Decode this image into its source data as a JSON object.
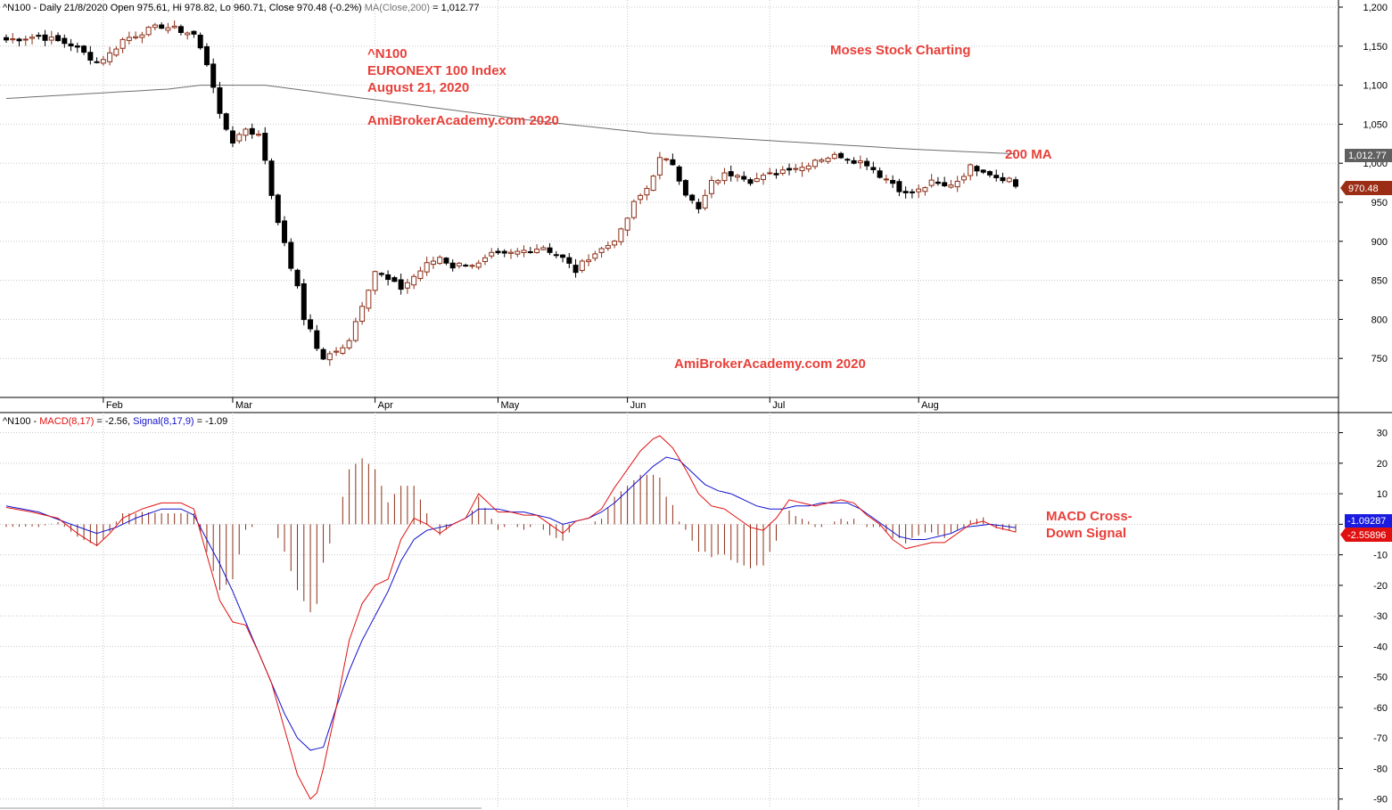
{
  "chart_data": [
    {
      "type": "candlestick",
      "header": {
        "symbol": "^N100",
        "info": " - Daily 21/8/2020 Open 975.61, Hi 978.82, Lo 960.71, Close 970.48 (-0.2%) ",
        "ma_label": "MA(Close,200)",
        "ma_value": " = 1,012.77"
      },
      "ylim": [
        700,
        1200
      ],
      "y_ticks": [
        {
          "value": 750,
          "label": "750"
        },
        {
          "value": 800,
          "label": "800"
        },
        {
          "value": 850,
          "label": "850"
        },
        {
          "value": 900,
          "label": "900"
        },
        {
          "value": 950,
          "label": "950"
        },
        {
          "value": 1000,
          "label": "1,000"
        },
        {
          "value": 1050,
          "label": "1,050"
        },
        {
          "value": 1100,
          "label": "1,100"
        },
        {
          "value": 1150,
          "label": "1,150"
        },
        {
          "value": 1200,
          "label": "1,200"
        }
      ],
      "x_ticks": [
        {
          "index": 15,
          "label": "Feb"
        },
        {
          "index": 35,
          "label": "Mar"
        },
        {
          "index": 57,
          "label": "Apr"
        },
        {
          "index": 76,
          "label": "May"
        },
        {
          "index": 96,
          "label": "Jun"
        },
        {
          "index": 118,
          "label": "Jul"
        },
        {
          "index": 141,
          "label": "Aug"
        }
      ],
      "close_keypoints": [
        [
          0,
          1158
        ],
        [
          5,
          1163
        ],
        [
          10,
          1152
        ],
        [
          14,
          1130
        ],
        [
          16,
          1140
        ],
        [
          18,
          1158
        ],
        [
          21,
          1168
        ],
        [
          24,
          1176
        ],
        [
          27,
          1170
        ],
        [
          29,
          1165
        ],
        [
          31,
          1128
        ],
        [
          32,
          1100
        ],
        [
          33,
          1060
        ],
        [
          35,
          1028
        ],
        [
          37,
          1045
        ],
        [
          39,
          1035
        ],
        [
          40,
          1005
        ],
        [
          41,
          960
        ],
        [
          43,
          895
        ],
        [
          45,
          840
        ],
        [
          46,
          800
        ],
        [
          47,
          790
        ],
        [
          48,
          762
        ],
        [
          49,
          750
        ],
        [
          51,
          758
        ],
        [
          53,
          775
        ],
        [
          55,
          820
        ],
        [
          57,
          862
        ],
        [
          59,
          850
        ],
        [
          61,
          840
        ],
        [
          63,
          855
        ],
        [
          65,
          870
        ],
        [
          67,
          880
        ],
        [
          69,
          868
        ],
        [
          71,
          872
        ],
        [
          73,
          870
        ],
        [
          75,
          882
        ],
        [
          77,
          882
        ],
        [
          80,
          888
        ],
        [
          83,
          893
        ],
        [
          86,
          878
        ],
        [
          88,
          862
        ],
        [
          90,
          880
        ],
        [
          93,
          895
        ],
        [
          95,
          912
        ],
        [
          97,
          948
        ],
        [
          99,
          968
        ],
        [
          101,
          1005
        ],
        [
          103,
          1000
        ],
        [
          105,
          962
        ],
        [
          107,
          940
        ],
        [
          109,
          975
        ],
        [
          111,
          985
        ],
        [
          113,
          988
        ],
        [
          115,
          978
        ],
        [
          117,
          982
        ],
        [
          119,
          988
        ],
        [
          121,
          995
        ],
        [
          123,
          995
        ],
        [
          125,
          1005
        ],
        [
          127,
          1008
        ],
        [
          129,
          1010
        ],
        [
          131,
          1004
        ],
        [
          133,
          1000
        ],
        [
          135,
          985
        ],
        [
          137,
          975
        ],
        [
          139,
          960
        ],
        [
          141,
          965
        ],
        [
          143,
          975
        ],
        [
          145,
          970
        ],
        [
          147,
          978
        ],
        [
          149,
          995
        ],
        [
          151,
          992
        ],
        [
          153,
          983
        ],
        [
          155,
          980
        ],
        [
          156,
          970
        ]
      ],
      "ma200_keypoints": [
        [
          0,
          1083
        ],
        [
          25,
          1095
        ],
        [
          30,
          1100
        ],
        [
          40,
          1100
        ],
        [
          60,
          1078
        ],
        [
          80,
          1056
        ],
        [
          100,
          1038
        ],
        [
          120,
          1028
        ],
        [
          140,
          1018
        ],
        [
          156,
          1012
        ]
      ],
      "last_close": 970.48,
      "last_close_label": "970.48",
      "last_ma": 1012.77,
      "last_ma_label": "1,012.77",
      "annotations": {
        "symbol_line": "^N100",
        "index_line": "EURONEXT 100 Index",
        "date_line": "August 21, 2020",
        "watermark1": "AmiBrokerAcademy.com  2020",
        "brand": "Moses Stock Charting",
        "ma_note": "200 MA",
        "watermark2": "AmiBrokerAcademy.com  2020"
      },
      "colors": {
        "up": "#8b2e16",
        "down": "#000000",
        "ma": "#6e6e6e",
        "close_tag": "#9b2d14",
        "ma_tag": "#606060"
      }
    },
    {
      "type": "line",
      "header": {
        "symbol": "^N100",
        "macd_label": "MACD(8,17)",
        "macd_value": " = -2.56, ",
        "signal_label": "Signal(8,17,9)",
        "signal_value": " = -1.09"
      },
      "ylim": [
        -93,
        36
      ],
      "y_ticks": [
        {
          "value": 30,
          "label": "30"
        },
        {
          "value": 20,
          "label": "20"
        },
        {
          "value": 10,
          "label": "10"
        },
        {
          "value": 0,
          "label": "0"
        },
        {
          "value": -10,
          "label": "-10"
        },
        {
          "value": -20,
          "label": "-20"
        },
        {
          "value": -30,
          "label": "-30"
        },
        {
          "value": -40,
          "label": "-40"
        },
        {
          "value": -50,
          "label": "-50"
        },
        {
          "value": -60,
          "label": "-60"
        },
        {
          "value": -70,
          "label": "-70"
        },
        {
          "value": -80,
          "label": "-80"
        },
        {
          "value": -90,
          "label": "-90"
        }
      ],
      "macd_keypoints": [
        [
          0,
          5.5
        ],
        [
          4,
          4
        ],
        [
          8,
          2
        ],
        [
          11,
          -3
        ],
        [
          14,
          -7
        ],
        [
          16,
          -3
        ],
        [
          18,
          2
        ],
        [
          21,
          5
        ],
        [
          24,
          7
        ],
        [
          27,
          7
        ],
        [
          29,
          5
        ],
        [
          31,
          -10
        ],
        [
          33,
          -25
        ],
        [
          35,
          -32
        ],
        [
          37,
          -33
        ],
        [
          39,
          -42
        ],
        [
          41,
          -52
        ],
        [
          43,
          -67
        ],
        [
          45,
          -82
        ],
        [
          47,
          -90
        ],
        [
          48,
          -88
        ],
        [
          49,
          -80
        ],
        [
          51,
          -60
        ],
        [
          53,
          -38
        ],
        [
          55,
          -26
        ],
        [
          57,
          -20
        ],
        [
          59,
          -18
        ],
        [
          61,
          -5
        ],
        [
          63,
          2
        ],
        [
          65,
          0
        ],
        [
          67,
          -3
        ],
        [
          69,
          0
        ],
        [
          71,
          2
        ],
        [
          73,
          10
        ],
        [
          76,
          4
        ],
        [
          78,
          4
        ],
        [
          80,
          3
        ],
        [
          82,
          3
        ],
        [
          84,
          0
        ],
        [
          86,
          -3
        ],
        [
          88,
          1
        ],
        [
          90,
          2
        ],
        [
          92,
          5
        ],
        [
          94,
          12
        ],
        [
          96,
          18
        ],
        [
          98,
          24
        ],
        [
          100,
          28
        ],
        [
          101,
          29
        ],
        [
          103,
          25
        ],
        [
          105,
          18
        ],
        [
          107,
          10
        ],
        [
          109,
          6
        ],
        [
          111,
          5
        ],
        [
          113,
          2
        ],
        [
          115,
          -1
        ],
        [
          117,
          -2
        ],
        [
          119,
          2
        ],
        [
          121,
          8
        ],
        [
          123,
          7
        ],
        [
          125,
          6
        ],
        [
          127,
          7
        ],
        [
          129,
          8
        ],
        [
          131,
          7
        ],
        [
          133,
          3
        ],
        [
          135,
          0
        ],
        [
          137,
          -5
        ],
        [
          139,
          -8
        ],
        [
          141,
          -7
        ],
        [
          143,
          -6
        ],
        [
          145,
          -6
        ],
        [
          147,
          -3
        ],
        [
          149,
          0
        ],
        [
          151,
          1
        ],
        [
          153,
          -1
        ],
        [
          155,
          -2
        ],
        [
          156,
          -2.56
        ]
      ],
      "signal_keypoints": [
        [
          0,
          6
        ],
        [
          5,
          4
        ],
        [
          10,
          0
        ],
        [
          14,
          -3
        ],
        [
          17,
          -1
        ],
        [
          20,
          2
        ],
        [
          24,
          5
        ],
        [
          27,
          5
        ],
        [
          29,
          3
        ],
        [
          31,
          -5
        ],
        [
          33,
          -13
        ],
        [
          35,
          -22
        ],
        [
          37,
          -32
        ],
        [
          39,
          -42
        ],
        [
          41,
          -52
        ],
        [
          43,
          -62
        ],
        [
          45,
          -70
        ],
        [
          47,
          -74
        ],
        [
          49,
          -73
        ],
        [
          51,
          -60
        ],
        [
          53,
          -48
        ],
        [
          55,
          -38
        ],
        [
          57,
          -30
        ],
        [
          59,
          -22
        ],
        [
          61,
          -12
        ],
        [
          63,
          -5
        ],
        [
          65,
          -2
        ],
        [
          67,
          -1
        ],
        [
          69,
          0
        ],
        [
          71,
          2
        ],
        [
          73,
          5
        ],
        [
          76,
          5
        ],
        [
          78,
          4
        ],
        [
          80,
          4
        ],
        [
          82,
          3
        ],
        [
          84,
          2
        ],
        [
          86,
          0
        ],
        [
          88,
          1
        ],
        [
          90,
          2
        ],
        [
          92,
          4
        ],
        [
          94,
          7
        ],
        [
          96,
          11
        ],
        [
          98,
          15
        ],
        [
          100,
          19
        ],
        [
          102,
          22
        ],
        [
          104,
          21
        ],
        [
          106,
          17
        ],
        [
          108,
          13
        ],
        [
          110,
          11
        ],
        [
          112,
          10
        ],
        [
          114,
          8
        ],
        [
          116,
          6
        ],
        [
          118,
          5
        ],
        [
          120,
          5
        ],
        [
          122,
          6
        ],
        [
          124,
          6
        ],
        [
          126,
          7
        ],
        [
          128,
          7
        ],
        [
          130,
          7
        ],
        [
          132,
          5
        ],
        [
          134,
          2
        ],
        [
          136,
          -1
        ],
        [
          138,
          -4
        ],
        [
          140,
          -5
        ],
        [
          142,
          -5
        ],
        [
          144,
          -4
        ],
        [
          146,
          -3
        ],
        [
          148,
          -1
        ],
        [
          150,
          -0.5
        ],
        [
          152,
          0
        ],
        [
          154,
          -0.5
        ],
        [
          156,
          -1.09
        ]
      ],
      "last_macd_label": "-2.55896",
      "last_signal_label": "-1.09287",
      "annotations": {
        "note_line1": "MACD Cross-",
        "note_line2": "Down Signal"
      },
      "colors": {
        "macd": "#e01010",
        "signal": "#1010d0",
        "hist": "#8b2e16",
        "macd_tag": "#e01010",
        "signal_tag": "#1a1ae0"
      }
    }
  ]
}
